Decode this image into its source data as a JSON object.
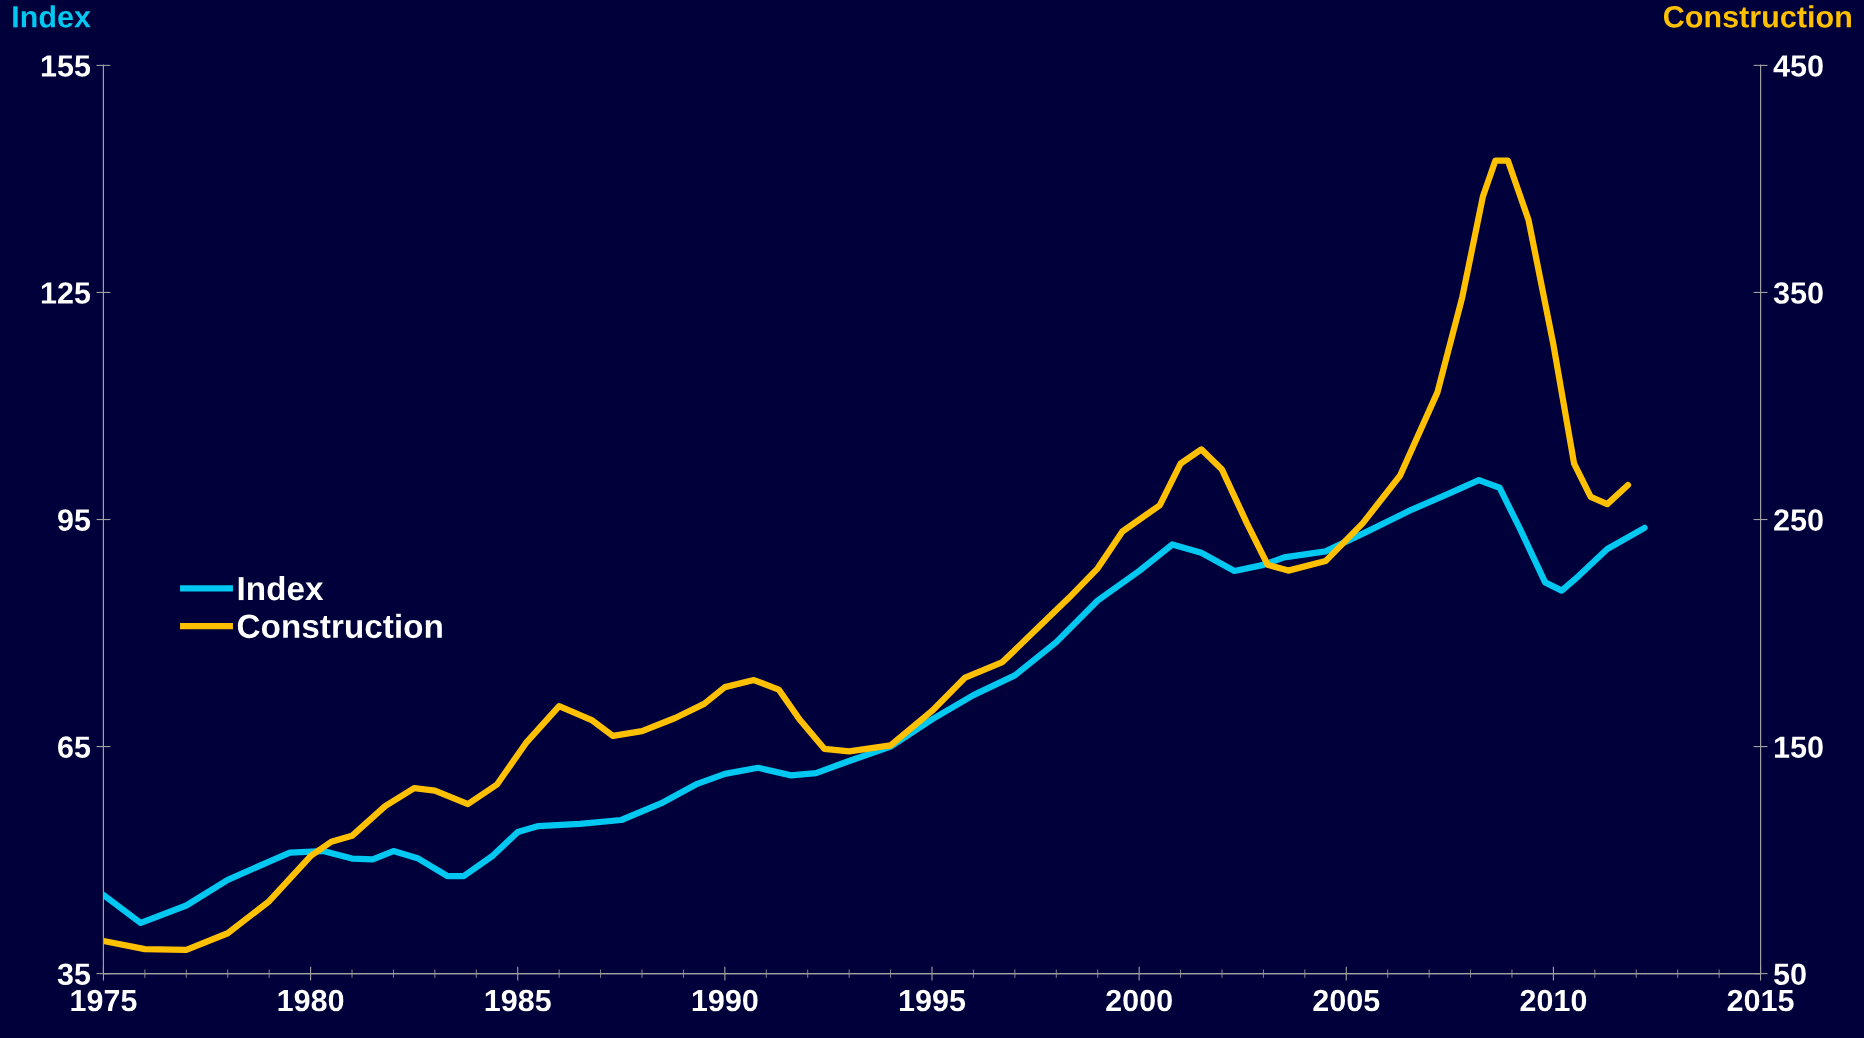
{
  "chart_data": {
    "type": "line",
    "ylabel": "Index",
    "y2label": "Construction",
    "xlim": [
      1975,
      2015
    ],
    "xticks": [
      1975,
      1980,
      1985,
      1990,
      1995,
      2000,
      2005,
      2010,
      2015
    ],
    "ylim": [
      35,
      155
    ],
    "yticks": [
      35,
      65,
      95,
      125,
      155
    ],
    "y2lim": [
      50,
      450
    ],
    "y2ticks": [
      50,
      150,
      250,
      350,
      450
    ],
    "grid": false,
    "legend": "left",
    "marker": "none",
    "line_style": "solid",
    "series": [
      {
        "name": "Index",
        "color": "#00c8f0",
        "x": [
          1975.0,
          1975.9,
          1977,
          1978,
          1979,
          1979.5,
          1980.3,
          1981,
          1981.5,
          1982,
          1982.6,
          1983.3,
          1983.7,
          1984.4,
          1985,
          1985.5,
          1986.5,
          1987.5,
          1988.5,
          1989.3,
          1990,
          1990.8,
          1991.6,
          1992.2,
          1993,
          1994,
          1995,
          1996,
          1997,
          1998,
          1999,
          2000,
          2000.8,
          2001.5,
          2002.3,
          2003,
          2003.5,
          2004.5,
          2005.5,
          2006.5,
          2007.5,
          2008.2,
          2008.7,
          2009.2,
          2009.8,
          2010.2,
          2010.6,
          2011.3,
          2012.2
        ],
        "values": [
          45.4,
          41.7,
          44.0,
          47.4,
          49.8,
          51.0,
          51.2,
          50.2,
          50.1,
          51.2,
          50.2,
          47.9,
          47.9,
          50.6,
          53.7,
          54.5,
          54.8,
          55.3,
          57.6,
          60.0,
          61.4,
          62.2,
          61.2,
          61.5,
          63.1,
          65.0,
          68.6,
          71.8,
          74.4,
          78.8,
          84.3,
          88.2,
          91.7,
          90.6,
          88.2,
          89.0,
          90.0,
          90.8,
          93.4,
          96.1,
          98.5,
          100.2,
          99.2,
          93.7,
          86.7,
          85.6,
          87.5,
          91.1,
          93.9
        ]
      },
      {
        "name": "Construction",
        "color": "#ffc000",
        "axis": "y2",
        "x": [
          1975.0,
          1976,
          1977,
          1978,
          1979,
          1980,
          1980.5,
          1981,
          1981.8,
          1982.5,
          1983.0,
          1983.8,
          1984.5,
          1985.2,
          1986,
          1986.8,
          1987.3,
          1988,
          1988.8,
          1989.5,
          1990,
          1990.7,
          1991.3,
          1991.8,
          1992.4,
          1993,
          1994,
          1995,
          1995.8,
          1996.7,
          1997.5,
          1998.3,
          1999,
          1999.6,
          2000.5,
          2001,
          2001.5,
          2002,
          2002.6,
          2003.1,
          2003.6,
          2004.5,
          2005.4,
          2006.3,
          2007.2,
          2007.8,
          2008.3,
          2008.6,
          2008.9,
          2009.4,
          2010,
          2010.5,
          2010.9,
          2011.3,
          2011.8
        ],
        "values": [
          64.4,
          60.8,
          60.5,
          67.8,
          81.9,
          101.8,
          108.1,
          110.7,
          123.8,
          131.7,
          130.6,
          124.7,
          133.3,
          151.6,
          167.8,
          161.5,
          154.7,
          156.8,
          162.6,
          168.8,
          176.2,
          179.3,
          175.1,
          162.0,
          149.0,
          147.9,
          150.5,
          165.7,
          180.4,
          187.2,
          201.3,
          215.4,
          228.5,
          244.8,
          256.3,
          274.6,
          280.9,
          272.0,
          248.4,
          230.1,
          227.5,
          231.7,
          248.4,
          269.4,
          306.0,
          347.9,
          392.4,
          408.1,
          408.1,
          381.9,
          327.0,
          274.6,
          260.0,
          256.8,
          265.2
        ]
      }
    ]
  }
}
